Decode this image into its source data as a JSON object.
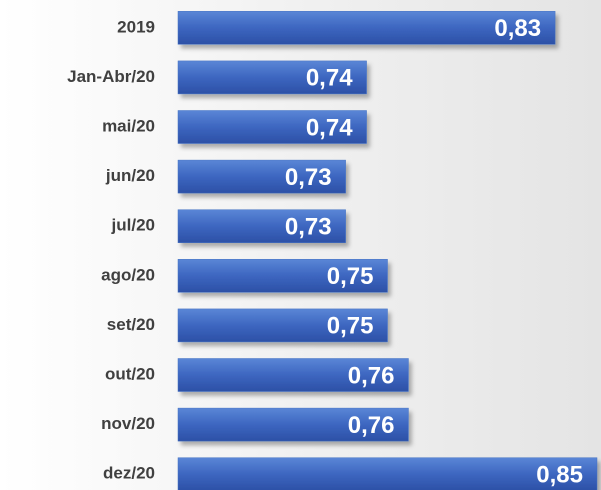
{
  "chart_data": {
    "type": "barh",
    "categories": [
      "2019",
      "Jan-Abr/20",
      "mai/20",
      "jun/20",
      "jul/20",
      "ago/20",
      "set/20",
      "out/20",
      "nov/20",
      "dez/20"
    ],
    "values": [
      0.83,
      0.74,
      0.74,
      0.73,
      0.73,
      0.75,
      0.75,
      0.76,
      0.76,
      0.85
    ],
    "value_labels": [
      "0,83",
      "0,74",
      "0,74",
      "0,73",
      "0,73",
      "0,75",
      "0,75",
      "0,76",
      "0,76",
      "0,85"
    ],
    "color": "#4472c4",
    "xlim": [
      0.65,
      0.85
    ]
  }
}
